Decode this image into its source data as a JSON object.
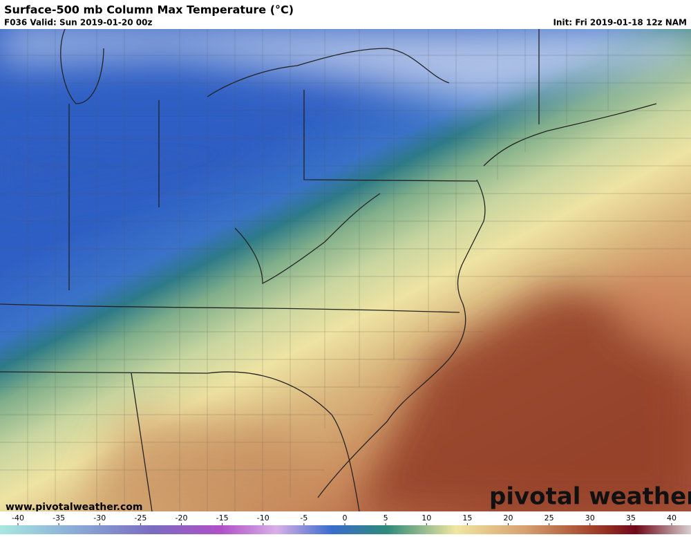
{
  "header": {
    "title": "Surface-500 mb Column Max Temperature (°C)",
    "valid": "F036 Valid: Sun 2019-01-20 00z",
    "init": "Init: Fri 2019-01-18 12z NAM"
  },
  "map": {
    "watermark": "www.pivotalweather.com",
    "logo": "pivotal weather"
  },
  "colorbar": {
    "ticks": [
      -40,
      -35,
      -30,
      -25,
      -20,
      -15,
      -10,
      -5,
      0,
      5,
      10,
      15,
      20,
      25,
      30,
      35,
      40
    ]
  }
}
